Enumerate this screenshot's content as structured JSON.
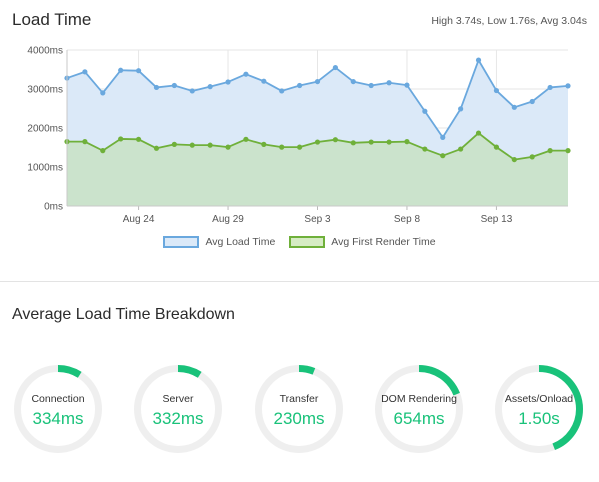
{
  "load_time": {
    "title": "Load Time",
    "summary": "High 3.74s, Low 1.76s, Avg 3.04s"
  },
  "colors": {
    "load_line": "#6aa8de",
    "load_fill": "#dbe9f8",
    "render_line": "#6fb03a",
    "render_fill": "#c9e2c6",
    "gauge_track": "#efefef",
    "gauge_fill": "#19c27a"
  },
  "chart_data": {
    "type": "area",
    "x_tick_labels": [
      "Aug 24",
      "Aug 29",
      "Sep 3",
      "Sep 8",
      "Sep 13"
    ],
    "x_tick_indices": [
      4,
      9,
      14,
      19,
      24
    ],
    "y_ticks": [
      "0ms",
      "1000ms",
      "2000ms",
      "3000ms",
      "4000ms"
    ],
    "ylim": [
      0,
      4000
    ],
    "grid": true,
    "legend_position": "bottom",
    "series": [
      {
        "name": "Avg Load Time",
        "values": [
          3280,
          3440,
          2900,
          3480,
          3470,
          3040,
          3090,
          2950,
          3060,
          3180,
          3380,
          3200,
          2950,
          3090,
          3190,
          3550,
          3190,
          3090,
          3160,
          3100,
          2430,
          1760,
          2490,
          3740,
          2960,
          2530,
          2680,
          3040,
          3080
        ]
      },
      {
        "name": "Avg First Render Time",
        "values": [
          1650,
          1650,
          1420,
          1720,
          1710,
          1480,
          1580,
          1560,
          1560,
          1510,
          1710,
          1580,
          1510,
          1510,
          1640,
          1700,
          1620,
          1640,
          1640,
          1650,
          1460,
          1290,
          1460,
          1870,
          1510,
          1190,
          1260,
          1420,
          1420
        ]
      }
    ]
  },
  "legend": {
    "load": "Avg Load Time",
    "render": "Avg First Render Time"
  },
  "breakdown": {
    "title": "Average Load Time Breakdown",
    "gauges": [
      {
        "label": "Connection",
        "value": "334ms",
        "fraction": 0.09
      },
      {
        "label": "Server",
        "value": "332ms",
        "fraction": 0.09
      },
      {
        "label": "Transfer",
        "value": "230ms",
        "fraction": 0.06
      },
      {
        "label": "DOM Rendering",
        "value": "654ms",
        "fraction": 0.19
      },
      {
        "label": "Assets/Onload",
        "value": "1.50s",
        "fraction": 0.44
      }
    ]
  }
}
